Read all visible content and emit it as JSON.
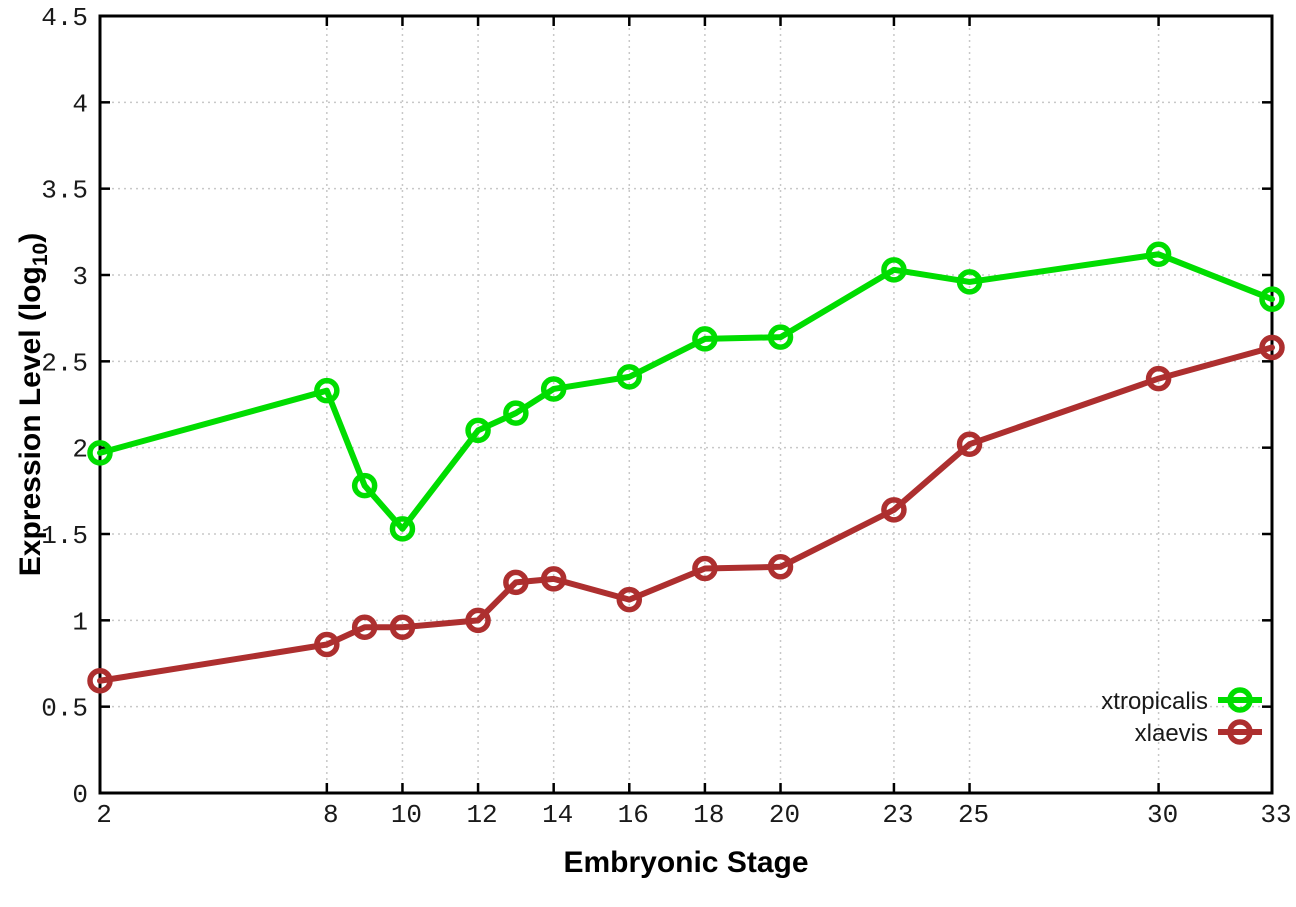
{
  "chart_data": {
    "type": "line",
    "title": "",
    "xlabel": "Embryonic Stage",
    "ylabel_prefix": "Expression Level (log",
    "ylabel_sub": "10",
    "ylabel_suffix": ")",
    "xlim": [
      2,
      33
    ],
    "ylim": [
      0,
      4.5
    ],
    "x_ticks": [
      2,
      8,
      10,
      12,
      14,
      16,
      18,
      20,
      23,
      25,
      30,
      33
    ],
    "x_tick_labels": [
      "2",
      "8",
      "10",
      "12",
      "14",
      "16",
      "18",
      "20",
      "23",
      "25",
      "30",
      "33"
    ],
    "y_ticks": [
      0,
      0.5,
      1,
      1.5,
      2,
      2.5,
      3,
      3.5,
      4,
      4.5
    ],
    "y_tick_labels": [
      "0",
      "0.5",
      "1",
      "1.5",
      "2",
      "2.5",
      "3",
      "3.5",
      "4",
      "4.5"
    ],
    "grid": true,
    "legend_position": "bottom-right",
    "x": [
      2,
      8,
      9,
      10,
      12,
      13,
      14,
      16,
      18,
      20,
      23,
      25,
      30,
      33
    ],
    "series": [
      {
        "name": "xtropicalis",
        "color": "#00dd00",
        "values": [
          1.97,
          2.33,
          1.78,
          1.53,
          2.1,
          2.2,
          2.34,
          2.41,
          2.63,
          2.64,
          3.03,
          2.96,
          3.12,
          2.86
        ]
      },
      {
        "name": "xlaevis",
        "color": "#ad2f2f",
        "values": [
          0.65,
          0.86,
          0.96,
          0.96,
          1.0,
          1.22,
          1.24,
          1.12,
          1.3,
          1.31,
          1.64,
          2.02,
          2.4,
          2.58
        ]
      }
    ]
  },
  "style": {
    "axis_color": "#000000",
    "grid_color": "#c8c8c8",
    "tick_label_color": "#1a1a1a",
    "background": "#ffffff"
  }
}
